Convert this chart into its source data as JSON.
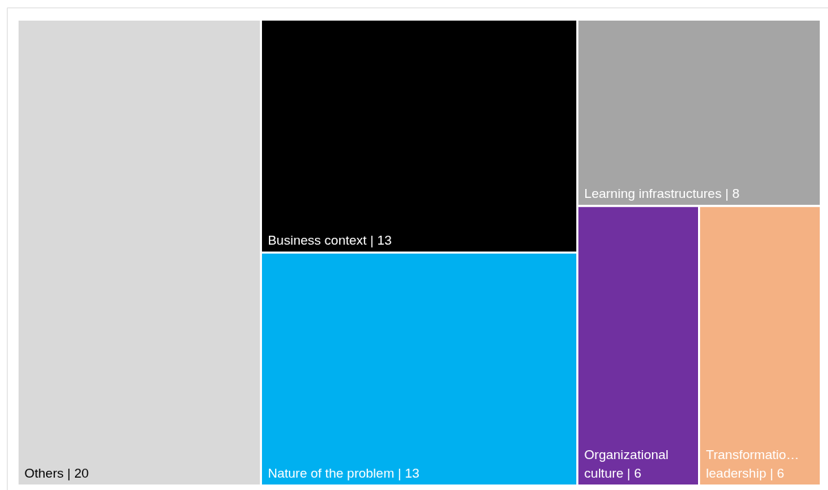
{
  "chart_data": {
    "type": "other",
    "categories": [
      "Others",
      "Business context",
      "Nature of the problem",
      "Learning infrastructures",
      "Organizational culture",
      "Transformatio… leadership"
    ],
    "values": [
      20,
      13,
      13,
      8,
      6,
      6
    ],
    "value_labels": [
      "| 20",
      "| 13",
      "| 13",
      "| 8",
      "| 6",
      "| 6"
    ],
    "colors": [
      "#d9d9d9",
      "#000000",
      "#00b0f0",
      "#a5a5a5",
      "#7030a0",
      "#f4b183"
    ]
  }
}
